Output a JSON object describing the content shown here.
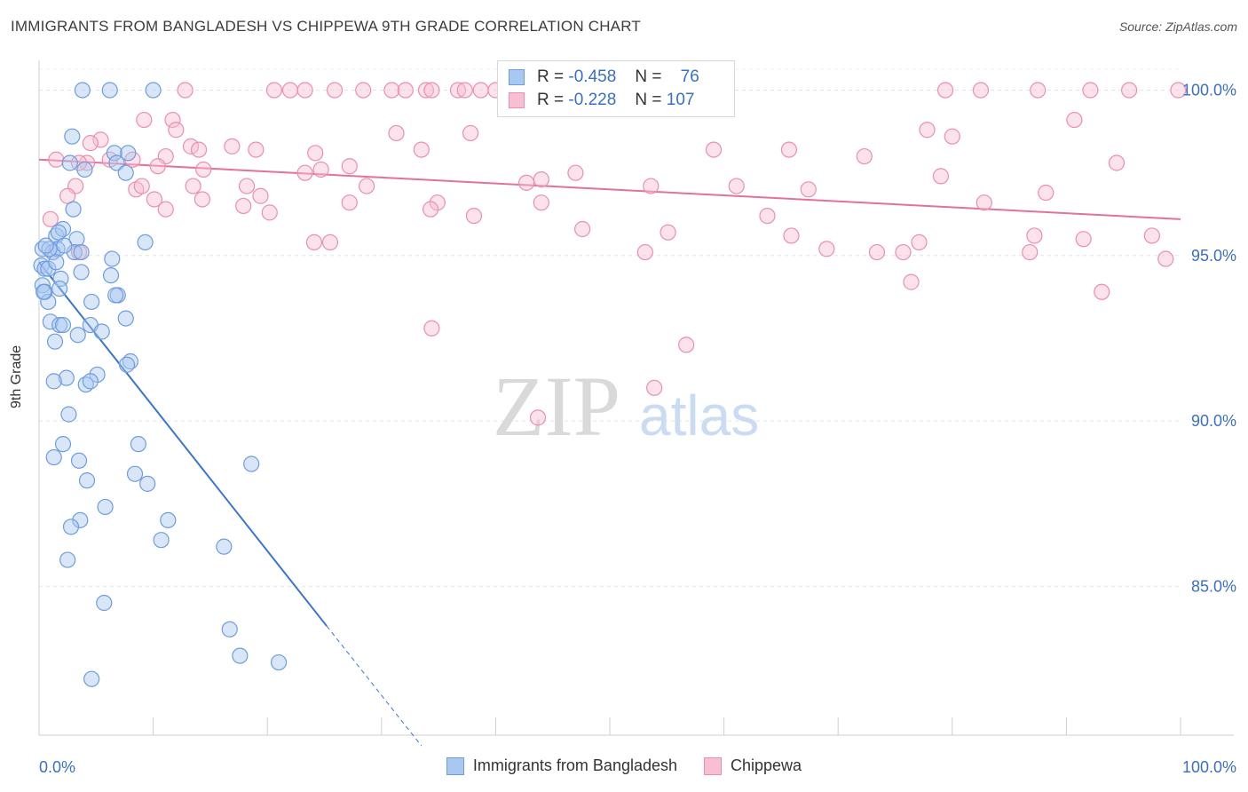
{
  "header": {
    "title": "IMMIGRANTS FROM BANGLADESH VS CHIPPEWA 9TH GRADE CORRELATION CHART",
    "source": "Source: ZipAtlas.com"
  },
  "watermark": {
    "zip": "ZIP",
    "atlas": "atlas"
  },
  "stats_box": {
    "rows": [
      {
        "r_label": "R =",
        "r_value": "-0.458",
        "n_label": "N =",
        "n_value": "76",
        "color": "#a8c8f0",
        "border": "#6d9de0"
      },
      {
        "r_label": "R =",
        "r_value": "-0.228",
        "n_label": "N =",
        "n_value": "107",
        "color": "#f8bfd0",
        "border": "#ea8fae"
      }
    ]
  },
  "legend": {
    "items": [
      {
        "label": "Immigrants from Bangladesh",
        "color": "#a8c8f0",
        "border": "#6d9de0"
      },
      {
        "label": "Chippewa",
        "color": "#f8bfd0",
        "border": "#ea8fae"
      }
    ]
  },
  "chart_data": {
    "type": "scatter",
    "title": "IMMIGRANTS FROM BANGLADESH VS CHIPPEWA 9TH GRADE CORRELATION CHART",
    "xlabel": "",
    "ylabel": "9th Grade",
    "x_tick_labels": [
      "0.0%",
      "100.0%"
    ],
    "y_tick_labels": [
      "100.0%",
      "95.0%",
      "90.0%",
      "85.0%"
    ],
    "y_ticks": [
      100,
      95,
      90,
      85
    ],
    "xlim": [
      0,
      100
    ],
    "ylim": [
      80.5,
      100.9
    ],
    "grid": true,
    "legend_position": "bottom",
    "series": [
      {
        "name": "Immigrants from Bangladesh",
        "color": "#6d9de0",
        "fill": "#a8c8f0",
        "trend": {
          "x0": 0,
          "y0": 94.8,
          "x1": 25.2,
          "y1": 83.8,
          "dash_to_x": 33.5
        },
        "points": [
          [
            3.8,
            100
          ],
          [
            6.2,
            100
          ],
          [
            10,
            100
          ],
          [
            2.9,
            98.6
          ],
          [
            6.6,
            98.1
          ],
          [
            7.8,
            98.1
          ],
          [
            4,
            97.6
          ],
          [
            2.7,
            97.8
          ],
          [
            6.8,
            97.8
          ],
          [
            7.6,
            97.5
          ],
          [
            3,
            96.4
          ],
          [
            1.5,
            95.6
          ],
          [
            2.1,
            95.8
          ],
          [
            3.3,
            95.5
          ],
          [
            1.7,
            95.7
          ],
          [
            9.3,
            95.4
          ],
          [
            0.3,
            95.2
          ],
          [
            1.2,
            95.1
          ],
          [
            1.6,
            95.2
          ],
          [
            0.9,
            95.2
          ],
          [
            3.1,
            95.1
          ],
          [
            6.4,
            94.9
          ],
          [
            0.2,
            94.7
          ],
          [
            0.5,
            94.6
          ],
          [
            3.7,
            94.5
          ],
          [
            6.3,
            94.4
          ],
          [
            1.9,
            94.3
          ],
          [
            0.3,
            94.1
          ],
          [
            0.5,
            93.9
          ],
          [
            1.8,
            94
          ],
          [
            6.9,
            93.8
          ],
          [
            6.7,
            93.8
          ],
          [
            4.6,
            93.6
          ],
          [
            0.8,
            93.6
          ],
          [
            1,
            93
          ],
          [
            7.6,
            93.1
          ],
          [
            1.8,
            92.9
          ],
          [
            2.1,
            92.9
          ],
          [
            4.5,
            92.9
          ],
          [
            3.4,
            92.6
          ],
          [
            5.5,
            92.7
          ],
          [
            8,
            91.8
          ],
          [
            1.4,
            92.4
          ],
          [
            7.7,
            91.7
          ],
          [
            5.1,
            91.4
          ],
          [
            2.4,
            91.3
          ],
          [
            1.3,
            91.2
          ],
          [
            4.1,
            91.1
          ],
          [
            4.5,
            91.2
          ],
          [
            2.6,
            90.2
          ],
          [
            8.7,
            89.3
          ],
          [
            2.1,
            89.3
          ],
          [
            1.3,
            88.9
          ],
          [
            3.5,
            88.8
          ],
          [
            18.6,
            88.7
          ],
          [
            8.4,
            88.4
          ],
          [
            4.2,
            88.2
          ],
          [
            9.5,
            88.1
          ],
          [
            5.8,
            87.4
          ],
          [
            3.6,
            87
          ],
          [
            11.3,
            87
          ],
          [
            2.8,
            86.8
          ],
          [
            10.7,
            86.4
          ],
          [
            16.2,
            86.2
          ],
          [
            2.5,
            85.8
          ],
          [
            5.7,
            84.5
          ],
          [
            16.7,
            83.7
          ],
          [
            17.6,
            82.9
          ],
          [
            21,
            82.7
          ],
          [
            4.6,
            82.2
          ],
          [
            0.6,
            95.3
          ],
          [
            2.2,
            95.3
          ],
          [
            0.8,
            94.6
          ],
          [
            3.7,
            95.1
          ],
          [
            1.5,
            94.8
          ],
          [
            0.4,
            93.9
          ]
        ]
      },
      {
        "name": "Chippewa",
        "color": "#ea8fae",
        "fill": "#f8bfd0",
        "trend": {
          "x0": 0,
          "y0": 97.9,
          "x1": 100,
          "y1": 96.1
        },
        "points": [
          [
            12.8,
            100
          ],
          [
            20.6,
            100
          ],
          [
            22,
            100
          ],
          [
            23.3,
            100
          ],
          [
            25.9,
            100
          ],
          [
            28.4,
            100
          ],
          [
            30.9,
            100
          ],
          [
            32.1,
            100
          ],
          [
            33.9,
            100
          ],
          [
            34.4,
            100
          ],
          [
            36.7,
            100
          ],
          [
            37.3,
            100
          ],
          [
            38.7,
            100
          ],
          [
            40,
            100
          ],
          [
            42.6,
            100
          ],
          [
            44.4,
            100
          ],
          [
            50.5,
            100
          ],
          [
            52.1,
            100
          ],
          [
            79.4,
            100
          ],
          [
            82.5,
            100
          ],
          [
            87.5,
            100
          ],
          [
            92.1,
            100
          ],
          [
            95.5,
            100
          ],
          [
            99.8,
            100
          ],
          [
            11.7,
            99.1
          ],
          [
            9.2,
            99.1
          ],
          [
            90.7,
            99.1
          ],
          [
            12,
            98.8
          ],
          [
            77.8,
            98.8
          ],
          [
            31.3,
            98.7
          ],
          [
            37.8,
            98.7
          ],
          [
            80,
            98.6
          ],
          [
            5.4,
            98.5
          ],
          [
            4.5,
            98.4
          ],
          [
            16.9,
            98.3
          ],
          [
            19,
            98.2
          ],
          [
            33.5,
            98.2
          ],
          [
            13.3,
            98.3
          ],
          [
            14,
            98.2
          ],
          [
            59.1,
            98.2
          ],
          [
            65.7,
            98.2
          ],
          [
            72.3,
            98
          ],
          [
            11.1,
            98
          ],
          [
            8.2,
            97.9
          ],
          [
            1.5,
            97.9
          ],
          [
            6.2,
            97.9
          ],
          [
            4.2,
            97.8
          ],
          [
            3.5,
            97.8
          ],
          [
            24.2,
            98.1
          ],
          [
            10.4,
            97.7
          ],
          [
            94.4,
            97.8
          ],
          [
            27.2,
            97.7
          ],
          [
            24.7,
            97.6
          ],
          [
            14.4,
            97.6
          ],
          [
            23.3,
            97.5
          ],
          [
            47,
            97.5
          ],
          [
            44,
            97.3
          ],
          [
            79,
            97.4
          ],
          [
            3.2,
            97.1
          ],
          [
            8.5,
            97
          ],
          [
            9,
            97.1
          ],
          [
            13.5,
            97.1
          ],
          [
            18.2,
            97.1
          ],
          [
            28.7,
            97.1
          ],
          [
            42.7,
            97.2
          ],
          [
            53.6,
            97.1
          ],
          [
            61.1,
            97.1
          ],
          [
            67.4,
            97
          ],
          [
            88.2,
            96.9
          ],
          [
            2.5,
            96.8
          ],
          [
            14.3,
            96.7
          ],
          [
            19.4,
            96.8
          ],
          [
            10.1,
            96.7
          ],
          [
            17.9,
            96.5
          ],
          [
            27.2,
            96.6
          ],
          [
            34.9,
            96.6
          ],
          [
            44,
            96.6
          ],
          [
            82.8,
            96.6
          ],
          [
            1,
            96.1
          ],
          [
            20.2,
            96.3
          ],
          [
            34.3,
            96.4
          ],
          [
            11.1,
            96.4
          ],
          [
            38.1,
            96.2
          ],
          [
            63.8,
            96.2
          ],
          [
            47.6,
            95.8
          ],
          [
            55.1,
            95.7
          ],
          [
            65.9,
            95.6
          ],
          [
            87.2,
            95.6
          ],
          [
            91.5,
            95.5
          ],
          [
            97.5,
            95.6
          ],
          [
            24.1,
            95.4
          ],
          [
            25.5,
            95.4
          ],
          [
            69,
            95.2
          ],
          [
            73.4,
            95.1
          ],
          [
            77.1,
            95.4
          ],
          [
            53.1,
            95.1
          ],
          [
            86.8,
            95.1
          ],
          [
            1.2,
            95.1
          ],
          [
            3.5,
            95.1
          ],
          [
            75.7,
            95.1
          ],
          [
            98.7,
            94.9
          ],
          [
            76.4,
            94.2
          ],
          [
            93.1,
            93.9
          ],
          [
            34.4,
            92.8
          ],
          [
            56.7,
            92.3
          ],
          [
            53.9,
            91
          ],
          [
            43.7,
            90.1
          ]
        ]
      }
    ]
  }
}
